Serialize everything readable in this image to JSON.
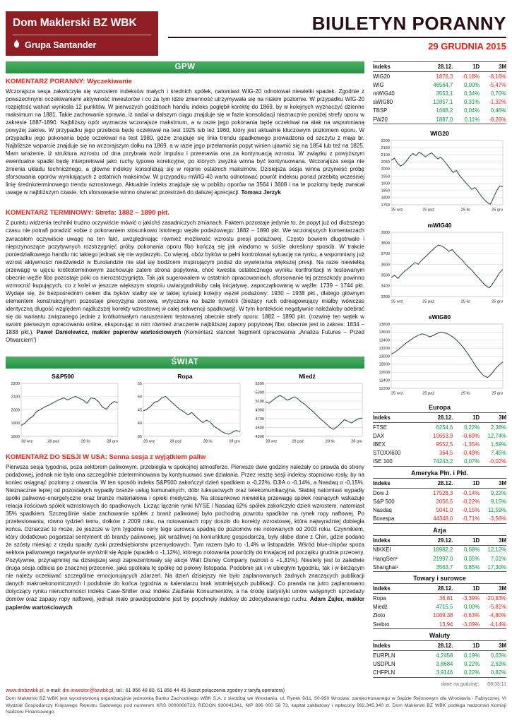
{
  "header": {
    "brand": "Dom Maklerski BZ WBK",
    "group": "Grupa Santander",
    "title": "BIULETYN PORANNY",
    "date": "29 GRUDNIA 2015"
  },
  "sections": {
    "gpw": "GPW",
    "world": "ŚWIAT"
  },
  "comments": [
    {
      "heading": "KOMENTARZ PORANNY: Wyczekiwanie",
      "body": "Wczorajsza sesja zakończyła się wzrostem indeksów małych i średnich spółek, natomiast WIG-20 odnotował niewielki spadek. Zgodnie z powszechnymi oczekiwaniami aktywność inwestorów i co za tym idzie zmienność utrzymywała się na niskim poziomie. W przypadku WIG-20 rozpiętość wahań wyniosła 12 punktów. W pierwszych godzinach handlu indeks pogłębił korektę do 1869, by w kolejnych wyznaczyć dzienne maksimum na 1881. Takie zachowanie sprawia, iż nadal w dalszym ciągu znajduje się w fazie konsolidacji nieznacznie poniżej strefy oporu w zakresie 1887-1890. Najbliższy opór wyznacza wczorajsze maksimum, a w razie jego pokonania będę oczekiwał na atak na wspomnianą powyżej zakres. W przypadku jego przebicia będę oczekiwał na test 1925 lub też 1960, który jest aktualnie kluczowym poziomem oporu. W przypadku jego pokonania będę oczekiwał na test 1980, gdzie znajduje się linia trendu spadkowego prowadzona od szczytu z maja br. Najbliższe wsparcie znajduje się na wczorajszym dołku na 1869, a w razie jego przełamania popyt winien ujawnić się na 1854 lub też na 1825. Mam wrażenie, iż struktura wzrostu od dna przybrała wzór impulsu i przemawia ona za kontynuacją wzrostu. W związku z powyższym ewentualne spadki będę interpretował jako ruchy typowo korekcyjne, po których zwyżka winna być kontynuowana. Wczorajsza sesja nie zmienia układu technicznego, a główne indeksy konsolidują się w rejonie ostatnich maksimów. Dzisiejsza sesja winna przynieść próbę sforsowania oporów wynikających z ostatnich maksimów. W przypadku mWIG-40 warto odnotować powrót indeksu ponad przebitą wcześniej linię średnioterminowego trendu wzrostowego. Aktualnie indeks znajduje się w pobliżu oporów na 3564 i 3608 i na te poziomy będę zwracał uwagę w najbliższym czasie. Ich sforsowanie winno otwierać przestrzeń do dalszej aprecjacji.",
      "author": "Tomasz Jerzyk",
      "suffix": ""
    },
    {
      "heading": "KOMENTARZ TERMINOWY: Strefa: 1882 – 1890 pkt.",
      "body": "Z punktu widzenia techniki trudno oczywiście mówić o jakichś zasadniczych zmianach. Faktem pozostaje jedynie to, że popyt już od dłuższego czasu nie potrafi poradzić sobie z pokonaniem stosunkowo istotnego węzła podażowego: 1882 – 1890 pkt. We wczorajszych komentarzach zwracałem oczywiście uwagę na ten fakt, uwzględniając również możliwość wzrostu presji podażowej. Często bowiem długotrwałe i nieprzynoszące pozytywnych rozstrzygnięć próby pokonania oporu fibo kończą się jak wiadomo w ściśle określony sposób. W trakcie poniedziałkowego handlu nic takiego jednak się nie wydarzyło. Co więcej, obóz byków w pełni kontrolował sytuację na rynku, a wspomniany już wzrost aktywności niedźwiedzi w Eurolandzie nie stał się bodźcem inspirującym podaż do wywierania większej presji. Na razie niewielką przewagę w ujęciu krótkoterminowym zachowuje zatem strona popytowa, choć kwestia ostatecznego wyniku konfrontacji w testowanym obecnie węźle fibo pozostaje póki co nierozstrzygnięta. Tak jak sugerowałem w ostatnich opracowaniach, sforsowanie tej przeszkody powinno wzmocnić kupujących, co z kolei w jeszcze większym stopniu uwiarygodniłoby całą inicjatywę, zapoczątkowaną w węźle: 1739 – 1744 pkt. Wydaje się, że bezpośrednim celem dla byków stałby się w takiej sytuacji kolejny węzeł podażowy: 1930 – 1938 pkt., dlatego głównym elementem konstrukcyjnym pozostaje precyzyjna cenowa, wytyczona na bazie symetrii (bieżący ruch odreagowujący miałby wówczas identyczną długość względem najdłuższej korekty wzrostowej w całej sekwencji spadkowej). W tym kontekście negatywnie należałoby odebrać się do wariantu związanego jednie z krótkotrwałym naruszeniem testowanej obecnie strefy oporu: 1882 – 1890 pkt. (rozwinę ten wątek w swoim pierwszym opracowaniu online, eksponując w nim również znaczenie najbliższej zapory popytowej fibo; obecnie jest to zakres: 1834 – 1838 pkt.).",
      "author": "Paweł Danielewicz, makler papierów wartościowych",
      "suffix": " (Komentarz stanowi fragment opracowania „Analiza Futures – Przed Otwarciem”)"
    },
    {
      "heading": "KOMENTARZ DO SESJI W USA: Senna sesja z wyjątkiem paliw",
      "body": "Pierwsza sesja tygodnia, poza sektorem paliwowym, przebiegła w spokojnej atmosferze. Pierwsze dwie godziny należały co prawda do strony podażowej, jednak nie była ona szczególnie zdeterminowana by kontynuować swe działania. Przez resztę sesji indeksy stopniowo rosły, by na koniec osiągnąć poziomy z otwarcia. W ten sposób indeks S&P500 zakończył dzień spadkiem o -0,22%, DJIA o -0,14%, a Nasdaq o -0,15%. Nieznacznie lepiej od pozostałych wypadły branże usług komunalnych, dóbr luksusowych oraz telekomunikacyjna. Słabiej natomiast wypadły spółki paliwowo-energetyczne oraz branże materiałowa i opieki medycznej. Na stosunkowo niewielką przewagę spółek rosnących wskazuje relacja ilościowa spółek wzrostowych do spadkowych. Licząc łącznie rynki NYSE i Nasdaq 62% spółek zakończyło dzień wzrostem, natomiast 35% spadkiem. Szczególnie słabe zachowanie spółek z branż paliwowej było pochodną powrotu spadków na rynek ropy naftowej. Po przetestowaniu, równo tydzień temu, dołków z 2009 roku, na notowaniach ropy doszło do korekty wzrostowej, która najwyraźniej dobiegła końca. Oznaczać to może, że jeszcze w tym tygodniu ceny tego surowca spadną do poziomów nie notowanych od 2003 roku. Czynnikiem, który dodatkowo pogarszał sentyment do branży paliwowej, jak wrażliwej na koniunkturę gospodarczą, były słabe dane z Chin, gdzie podano że szósty miesiąc z rzędu spadły zyski przedsiębiorstw przemysłowych. Tym razem było to -1,4% w listopadzie. Wśród blue-chipów spoza sektora paliwowego negatywnie wyróżnił się Apple (spadek o -1,12%), którego notowania powróciły do trwającej od początku grudnia przeceny. Pozytywnie, przynajmniej na dzisiejszej sesji zaprezentowały się akcje Walt Disney Company (wzrost o +1,31%). Niestety jest to zaledwie druga sesja odbicia po znacznej przecenie, jaka spotkała tę spółkę od połowy listopada. Podobnie jak i w ubiegłym tygodniu, tak i w bieżącym nie należy oczekiwać szczególnie emocjonujących zdarzeń. Na dzień dzisiejszy nie było zaplanowanych żadnych znaczących publikacji danych makroekonomicznych i podobnie do końca tygodnia w kalendarzu brak istotniejszych publikacji. Co prawda na jutro zaplanowano dotyczący rynku nieruchomości indeks Case-Shiller oraz Indeks Zaufania Konsumentów, a na środę statystyki umów wstępnych sprzedaży domów oraz zapasy ropy naftowej, jednak mało prawdopodobne jest by popchnęły indeksy do zdecydowanego ruchu.",
      "author": "Adam Zajler, makler papierów wartościowych",
      "suffix": ""
    }
  ],
  "tables": [
    {
      "group": null,
      "headers": [
        "Indeks",
        "28.12.",
        "1D",
        "3M"
      ],
      "rows": [
        [
          "WIG20",
          "1876,3",
          "-0,18%",
          "-8,16%"
        ],
        [
          "WIG",
          "46564,7",
          "0,00%",
          "-5,47%"
        ],
        [
          "mWIG40",
          "3553,1",
          "0,34%",
          "0,70%"
        ],
        [
          "sWIG80",
          "12857,1",
          "0,31%",
          "-1,32%"
        ],
        [
          "TBSP",
          "1668,2",
          "0,04%",
          "0,46%"
        ],
        [
          "FW20",
          "1887,0",
          "0,11%",
          "-8,26%"
        ]
      ]
    },
    {
      "group": "Europa",
      "headers": [
        "Indeks",
        "28.12.",
        "1D",
        "3M"
      ],
      "rows": [
        [
          "FTSE",
          "6254,6",
          "0,22%",
          "2,38%"
        ],
        [
          "DAX",
          "10653,9",
          "-0,69%",
          "12,74%"
        ],
        [
          "IBEX",
          "9552,5",
          "-1,35%",
          "1,69%"
        ],
        [
          "STOXX600",
          "364,5",
          "-0,49%",
          "7,45%"
        ],
        [
          "ISE 100",
          "74243,2",
          "0,07%",
          "-0,02%"
        ]
      ]
    },
    {
      "group": "Ameryka Płn. i Płd.",
      "headers": [
        "Indeks",
        "28.12.",
        "1D",
        "3M"
      ],
      "rows": [
        [
          "Dow J.",
          "17528,3",
          "-0,14%",
          "9,22%"
        ],
        [
          "S&P 500",
          "2056,5",
          "-0,22%",
          "9,15%"
        ],
        [
          "Nasdaq",
          "5041,0",
          "-0,15%",
          "11,59%"
        ],
        [
          "Bovespa",
          "44348,0",
          "-0,71%",
          "-3,56%"
        ]
      ]
    },
    {
      "group": "Azja",
      "headers": [
        "Indeks",
        "29.12.",
        "1D",
        "3M"
      ],
      "rows": [
        [
          "NIKKEI",
          "18982,2",
          "0,58%",
          "12,12%"
        ],
        [
          "HangSen¹",
          "21997,0",
          "0,35%",
          "7,01%"
        ],
        [
          "Shanghai¹",
          "3563,7",
          "0,85%",
          "17,30%"
        ]
      ]
    },
    {
      "group": "Towary i surowce",
      "headers": [
        "Indeks",
        "28.12.",
        "1D",
        "3M"
      ],
      "rows": [
        [
          "Ropa",
          "36,81",
          "-3,39%",
          "-20,83%"
        ],
        [
          "Miedź",
          "4715,5",
          "0,00%",
          "-5,81%"
        ],
        [
          "Złoto",
          "1069,38",
          "-0,63%",
          "-4,80%"
        ],
        [
          "Srebro",
          "13,94",
          "-3,09%",
          "-4,14%"
        ]
      ]
    },
    {
      "group": "Waluty",
      "headers": [
        "Indeks",
        "28.12.",
        "1D",
        "3M"
      ],
      "rows": [
        [
          "EURPLN",
          "4,2458",
          "0,19%",
          "0,03%"
        ],
        [
          "USDPLN",
          "3,8684",
          "0,22%",
          "2,63%"
        ],
        [
          "CHFPLN",
          "3,9146",
          "0,22%",
          "0,82%"
        ]
      ]
    }
  ],
  "timestamp": {
    "label": "dane na godzinę:",
    "value": "08:33:11"
  },
  "chart_data": [
    {
      "type": "line",
      "title": "WIG20",
      "x_labels": [
        "25 wrz",
        "25 paź",
        "25 lis",
        "25 gru"
      ],
      "ylim": [
        1750,
        2200
      ],
      "yticks": [
        1750,
        1800,
        1850,
        1900,
        1950,
        2000,
        2050,
        2100,
        2150,
        2200
      ],
      "values": [
        2061,
        2076,
        2042,
        2021,
        2035,
        2059,
        2088,
        2109,
        2094,
        2118,
        2104,
        2086,
        2101,
        2114,
        2092,
        2071,
        2083,
        2059,
        2031,
        2002,
        1976,
        1991,
        1956,
        1931,
        1906,
        1882,
        1858,
        1871,
        1843,
        1812,
        1786,
        1766,
        1754,
        1799,
        1848,
        1882,
        1876
      ]
    },
    {
      "type": "line",
      "title": "mWIG40",
      "x_labels": [
        "25 wrz",
        "25 paź",
        "25 lis",
        "25 gru"
      ],
      "ylim": [
        3300,
        3900
      ],
      "yticks": [
        3300,
        3400,
        3500,
        3600,
        3700,
        3800,
        3900
      ],
      "values": [
        3478,
        3498,
        3469,
        3508,
        3538,
        3561,
        3589,
        3618,
        3601,
        3639,
        3668,
        3699,
        3729,
        3758,
        3781,
        3772,
        3751,
        3722,
        3739,
        3701,
        3669,
        3641,
        3602,
        3571,
        3541,
        3502,
        3468,
        3431,
        3401,
        3381,
        3419,
        3468,
        3521,
        3553
      ]
    },
    {
      "type": "line",
      "title": "sWIG80",
      "x_labels": [
        "25 wrz",
        "25 paź",
        "25 lis",
        "25 gru"
      ],
      "ylim": [
        12200,
        13800
      ],
      "yticks": [
        12200,
        12400,
        12600,
        12800,
        13000,
        13200,
        13400,
        13600,
        13800
      ],
      "values": [
        13050,
        13102,
        13178,
        13261,
        13338,
        13401,
        13468,
        13521,
        13558,
        13531,
        13482,
        13519,
        13571,
        13602,
        13578,
        13541,
        13478,
        13399,
        13298,
        13181,
        13049,
        12901,
        12749,
        12621,
        12519,
        12471,
        12552,
        12678,
        12781,
        12857
      ]
    },
    {
      "type": "line",
      "title": "S&P500",
      "x_labels": [
        "28 wrz",
        "28 paź",
        "28 lis",
        "28 gru"
      ],
      "ylim": [
        1800,
        2200
      ],
      "yticks": [
        1800,
        1900,
        2000,
        2100,
        2200
      ],
      "values": [
        1882,
        1901,
        1931,
        1951,
        1987,
        2003,
        2021,
        2034,
        2049,
        2065,
        2079,
        2090,
        2075,
        2089,
        2102,
        2088,
        2074,
        2050,
        2089,
        2086,
        2061,
        2021,
        2005,
        2041,
        2063,
        2056
      ]
    },
    {
      "type": "line",
      "title": "Ropa",
      "x_labels": [
        "28 wrz",
        "28 paź",
        "28 lis",
        "28 gru"
      ],
      "ylim": [
        35,
        55
      ],
      "yticks": [
        35,
        40,
        45,
        50,
        55
      ],
      "values": [
        44.6,
        45.3,
        46.4,
        47.9,
        48.3,
        49.6,
        50.1,
        48.7,
        47.4,
        46.1,
        45.0,
        44.2,
        43.1,
        44.0,
        42.6,
        41.3,
        40.2,
        41.1,
        40.3,
        38.8,
        37.9,
        36.9,
        36.2,
        35.8,
        36.6,
        37.2,
        36.8
      ]
    },
    {
      "type": "line",
      "title": "Miedź",
      "x_labels": [
        "28 wrz",
        "28 paź",
        "28 lis",
        "28 gru"
      ],
      "ylim": [
        4300,
        5500
      ],
      "yticks": [
        4300,
        4500,
        4700,
        4900,
        5100,
        5300,
        5500
      ],
      "values": [
        5082,
        5051,
        5118,
        5177,
        5229,
        5183,
        5121,
        5149,
        5198,
        5152,
        5078,
        5021,
        4948,
        4879,
        4802,
        4719,
        4651,
        4578,
        4502,
        4458,
        4521,
        4598,
        4678,
        4641,
        4602,
        4658,
        4701,
        4715
      ]
    }
  ],
  "footer": {
    "website": "www.dmbzwbk.pl",
    "email_label": ", e-mail: ",
    "email": "dm.inwestor@bzwbk.pl",
    "phone": ", tel.: 61 856 48 80, 61 856 44 45 (koszt połączenia zgodny z taryfą operatora)",
    "legal": "Dom Maklerski BZ WBK jest wyodrębnioną organizacyjnie jednostką Banku Zachodniego WBK S.A. z siedzibą we Wrocławiu, ul. Rynek 9/11, 50-950 Wrocław, zarejestrowanego w Sądzie Rejonowym dla Wrocławia - Fabrycznej, VI Wydział Gospodarczy Krajowego Rejestru Sądowego pod numerem KRS 0000008723, REGON 930041341, NIP 896 000 56 73, kapitał zakładowy i wpłacony 992.345.340 zł. Dom Maklerski BZ WBK podlega nadzorowi Komisji Nadzoru Finansowego."
  },
  "colors": {
    "brand_maroon": "#8f1e24",
    "accent_red": "#e2231a",
    "section_green": "#2a9247",
    "positive": "#00963f",
    "negative": "#e2231a"
  }
}
